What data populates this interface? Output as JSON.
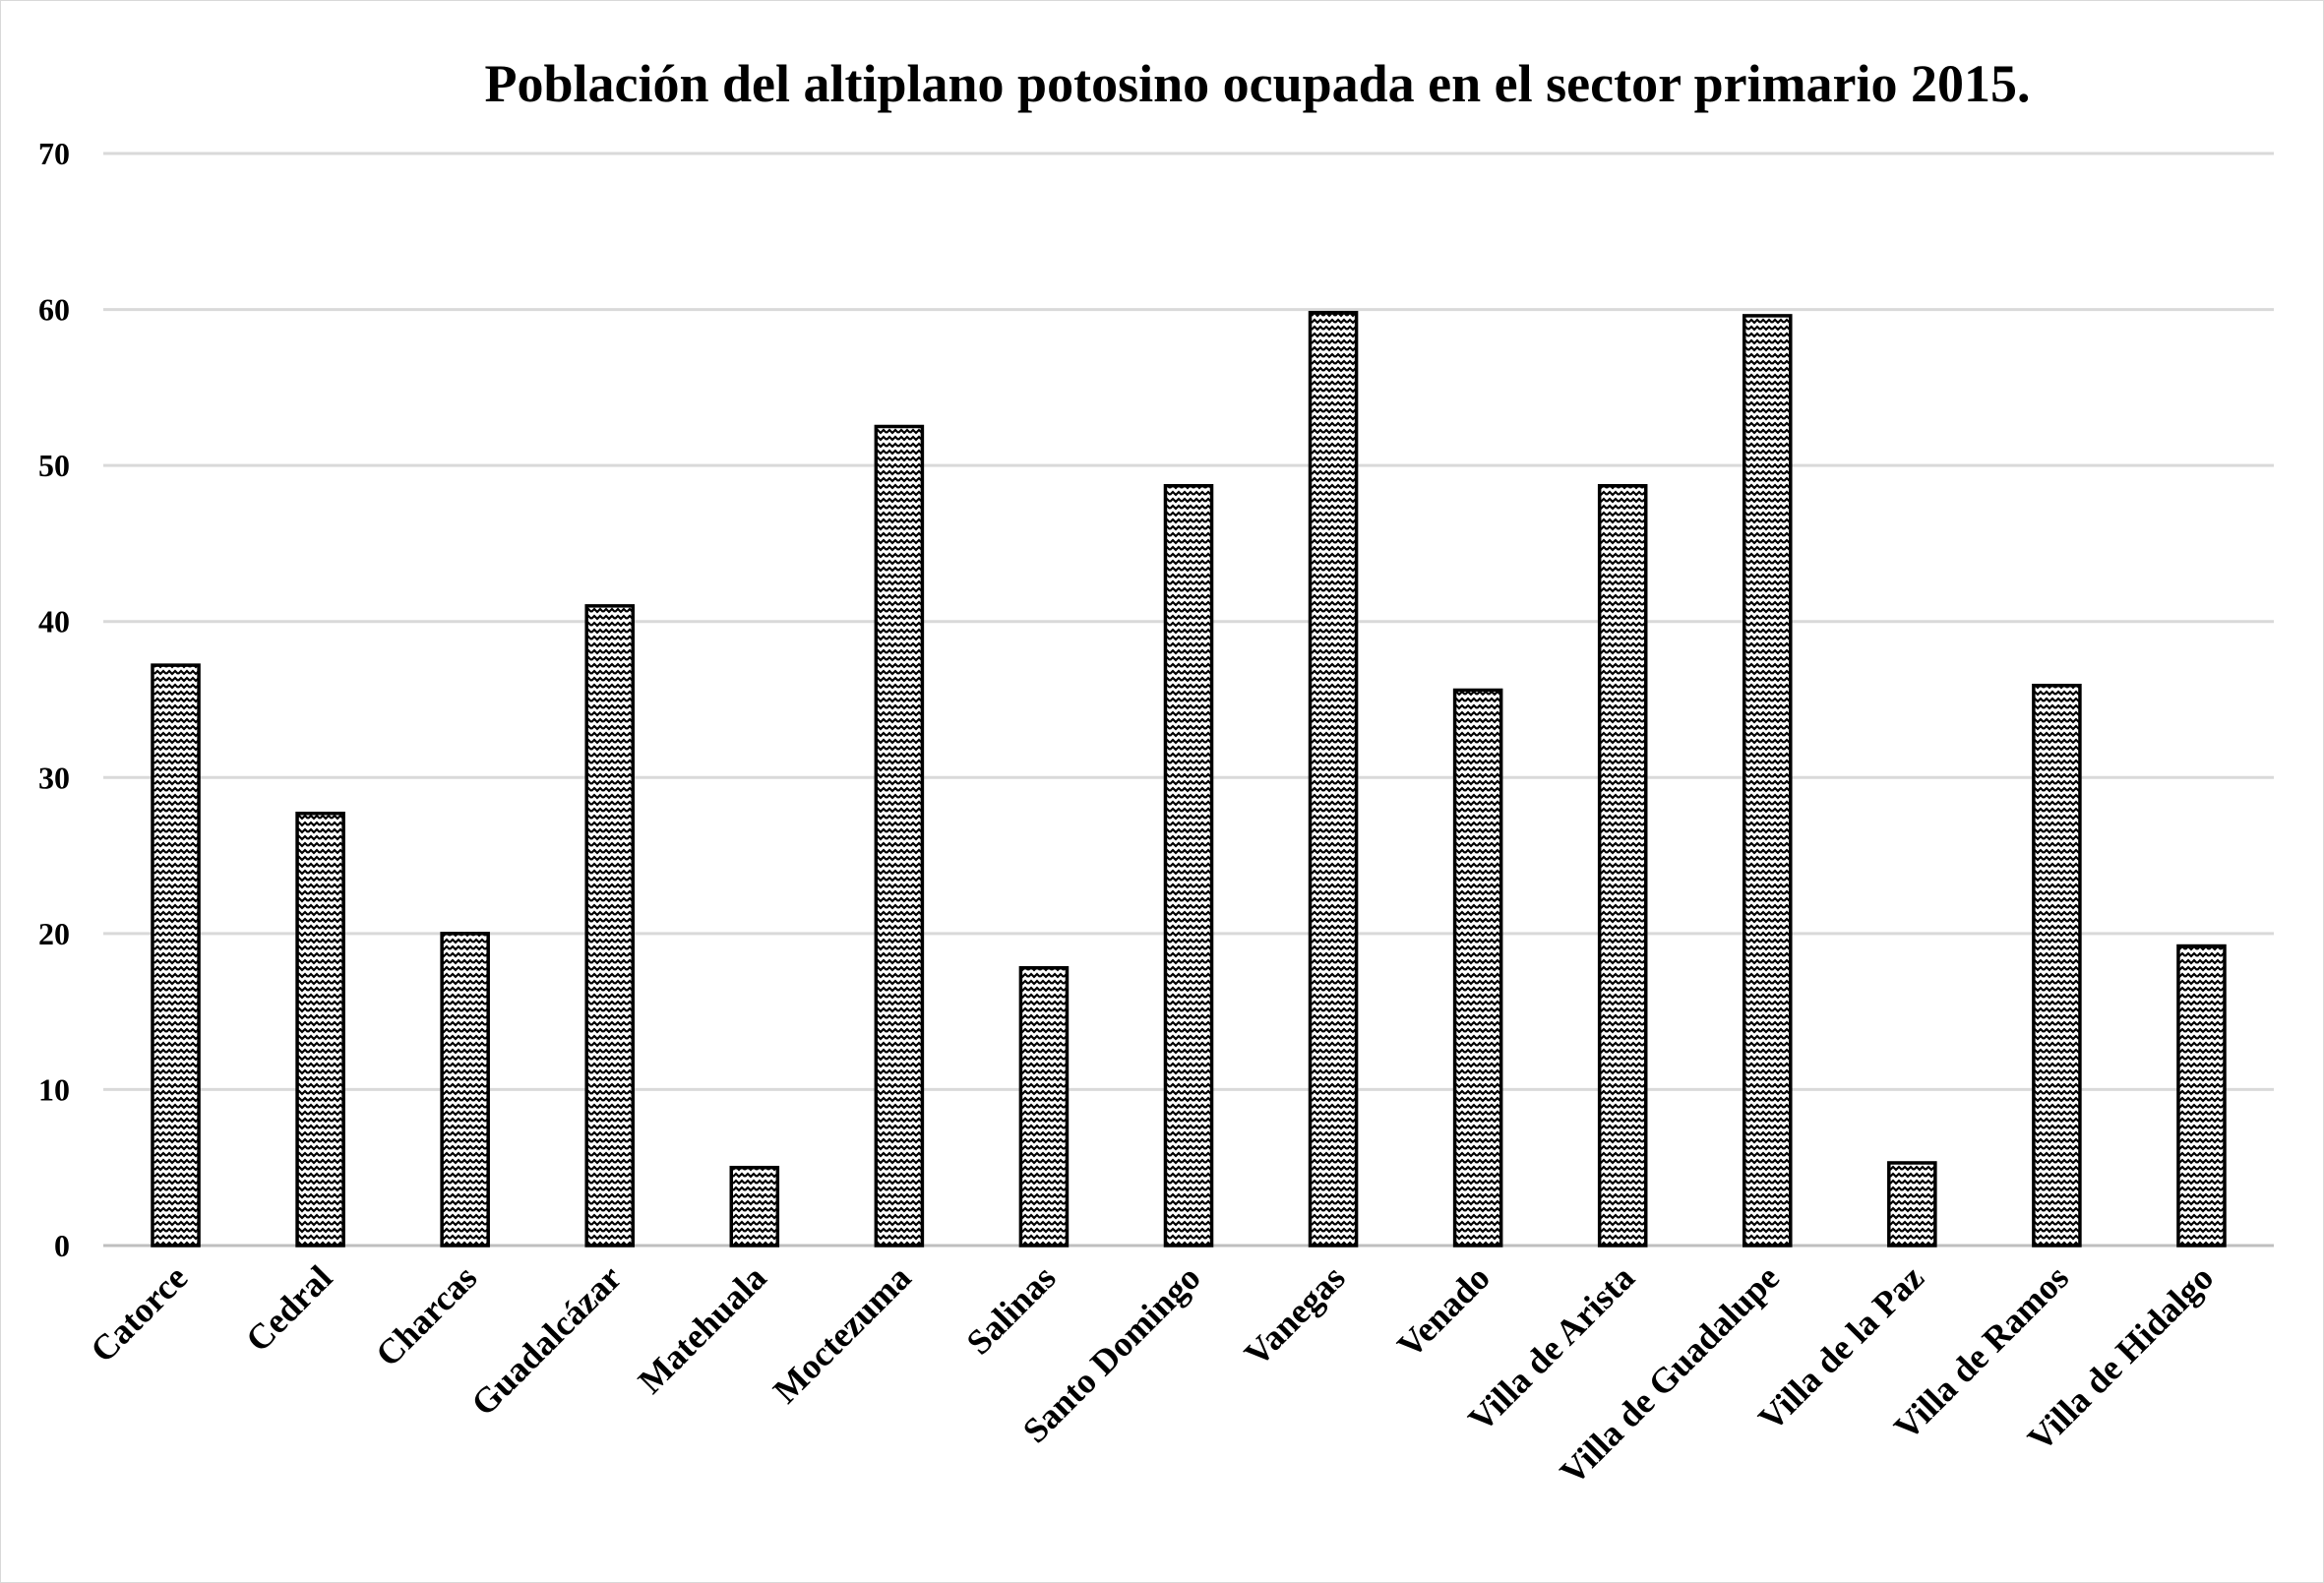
{
  "chart_data": {
    "type": "bar",
    "title": "Población del altiplano potosino ocupada en el sector primario 2015.",
    "xlabel": "",
    "ylabel": "",
    "ylim": [
      0,
      70
    ],
    "yticks": [
      "0",
      "10",
      "20",
      "30",
      "40",
      "50",
      "60",
      "70"
    ],
    "grid": true,
    "legend": "none",
    "bar_fill": "zigzag-pattern",
    "colors": {
      "bar_stroke": "#000000",
      "grid": "#d9d9d9",
      "axis": "#bfbfbf"
    },
    "categories": [
      "Catorce",
      "Cedral",
      "Charcas",
      "Guadalcázar",
      "Matehuala",
      "Moctezuma",
      "Salinas",
      "Santo Domingo",
      "Vanegas",
      "Venado",
      "Villa de Arista",
      "Villa de Guadalupe",
      "Villa de la Paz",
      "Villa de Ramos",
      "Villa de Hidalgo"
    ],
    "values": [
      37.2,
      27.7,
      20.0,
      41.0,
      5.0,
      52.5,
      17.8,
      48.7,
      59.8,
      35.6,
      48.7,
      59.6,
      5.3,
      35.9,
      19.2
    ]
  }
}
